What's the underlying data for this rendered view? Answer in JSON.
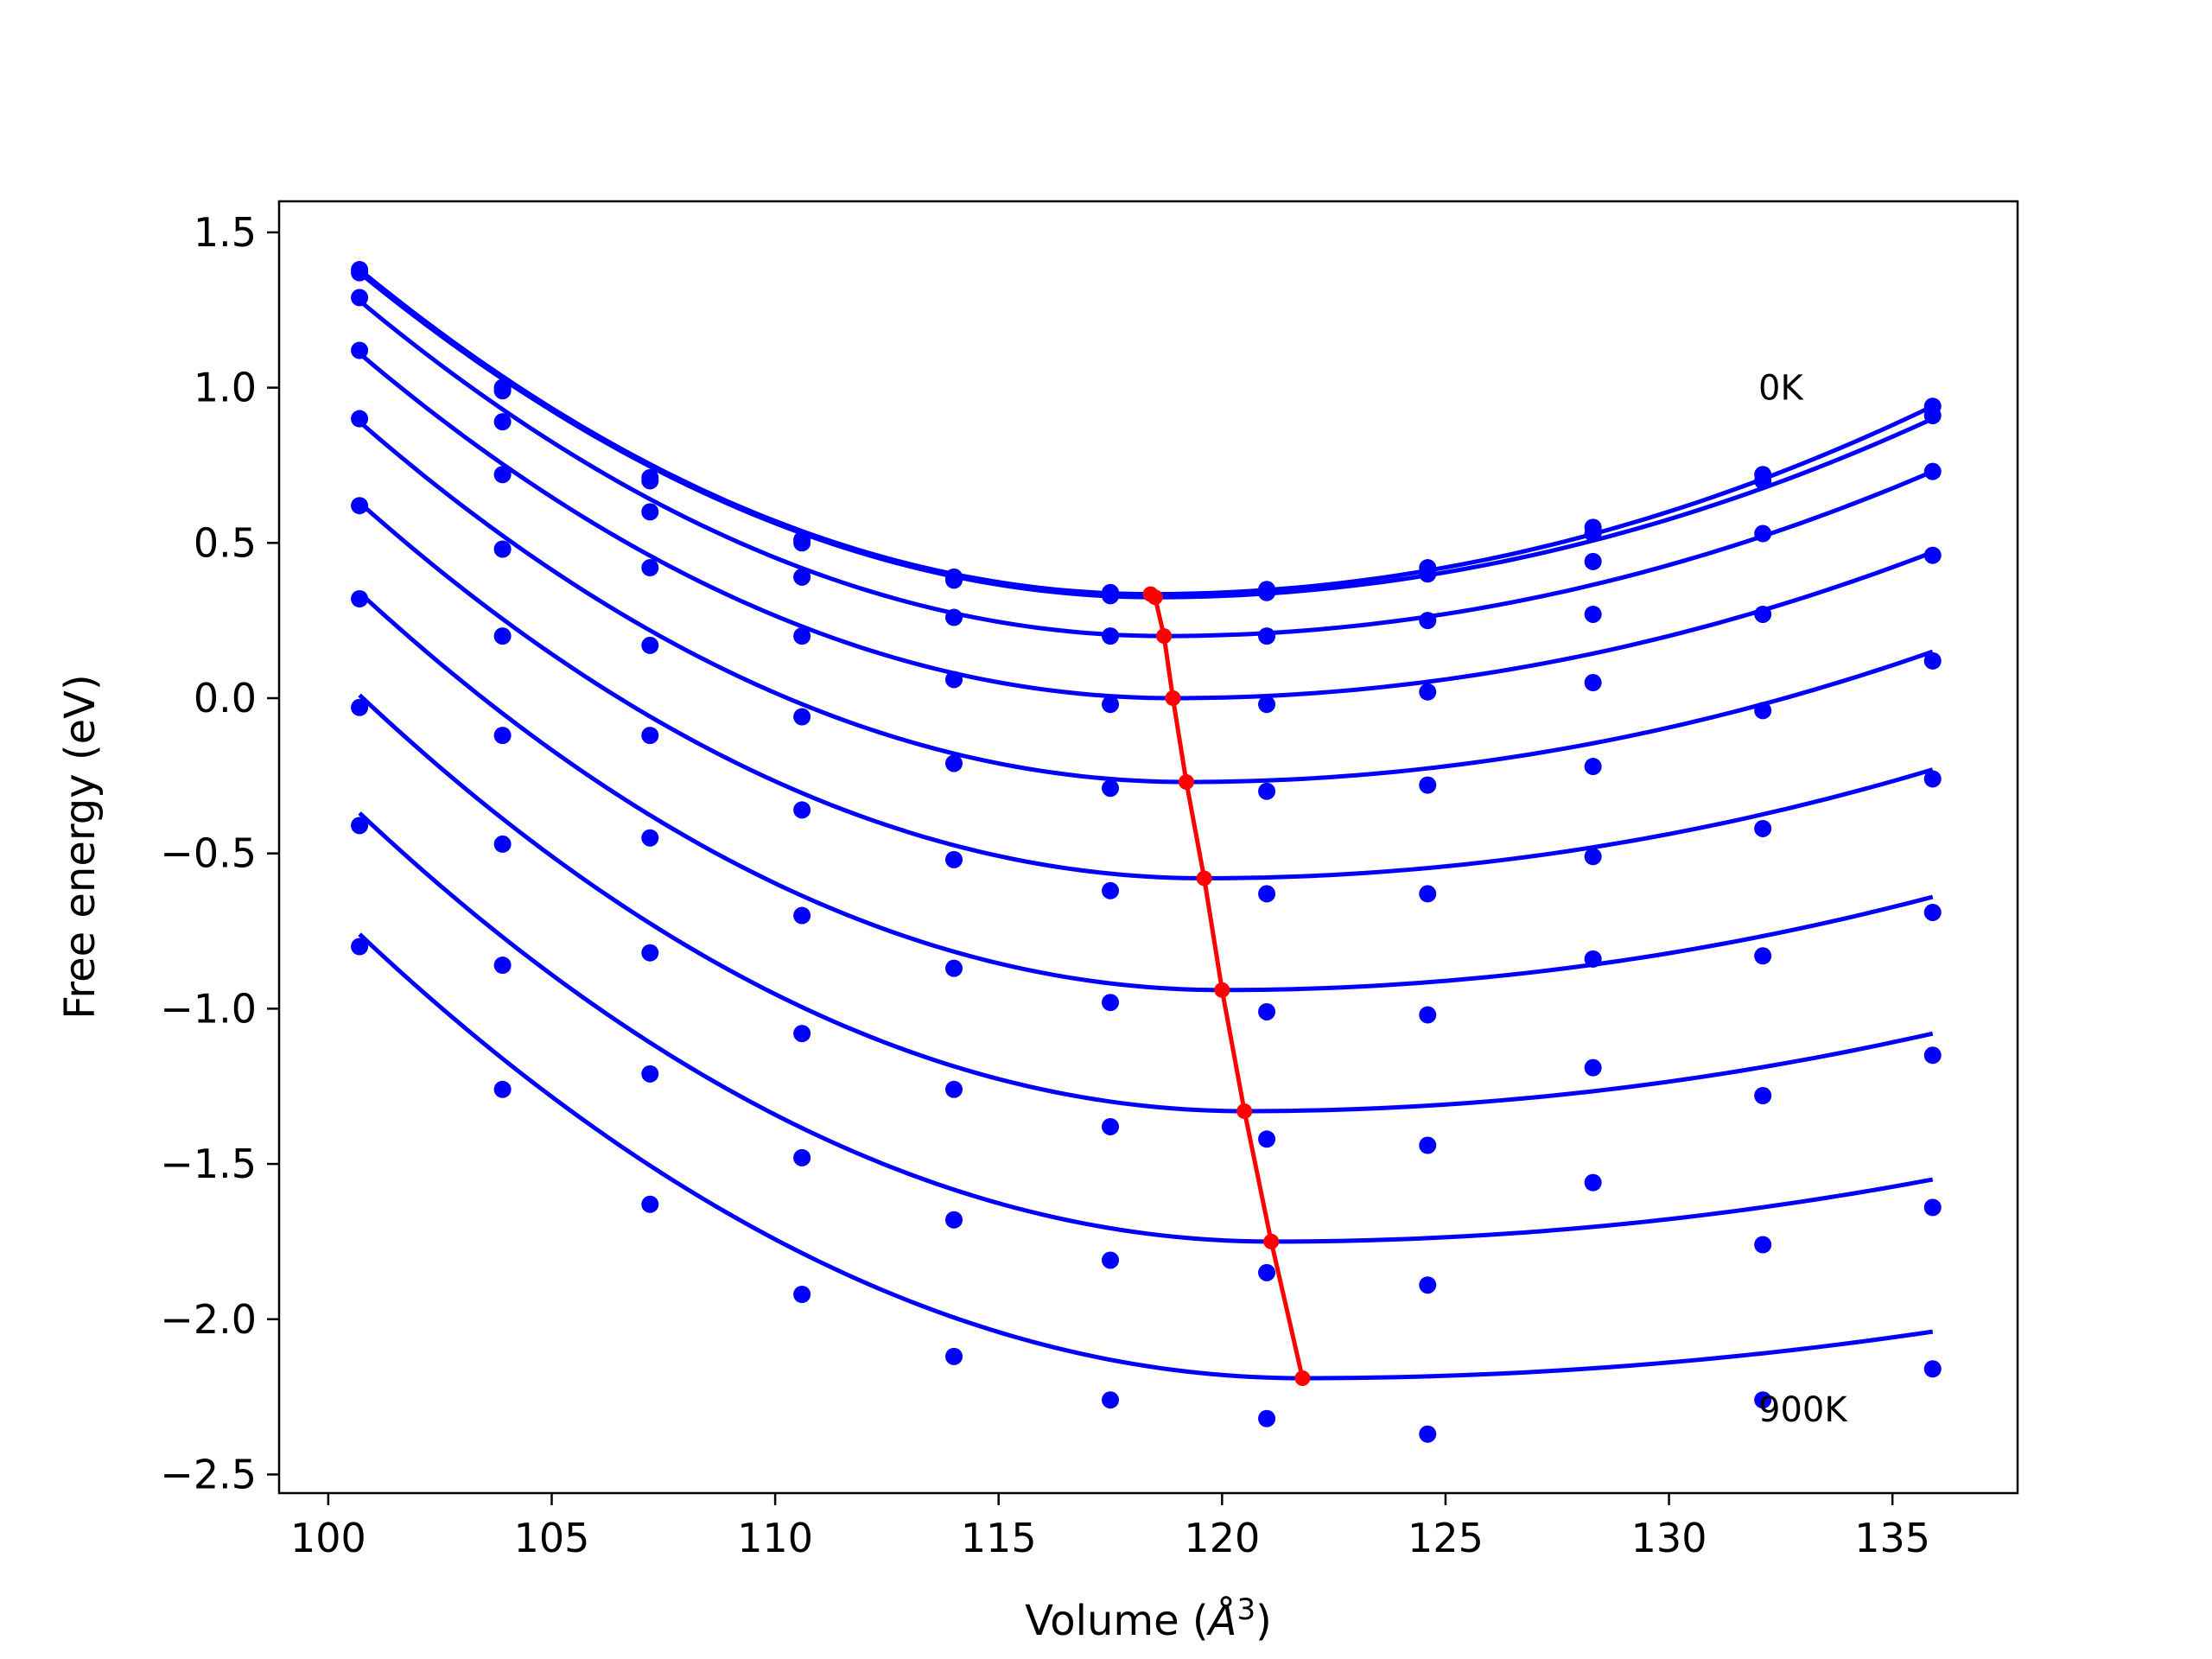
{
  "chart_data": {
    "type": "line",
    "xlabel_prefix": "Volume (",
    "xlabel_unit": "Å",
    "xlabel_exp": "3",
    "xlabel_suffix": ")",
    "ylabel": "Free energy (eV)",
    "xlim": [
      98.9,
      137.8
    ],
    "ylim": [
      -2.56,
      1.6
    ],
    "xticks": [
      100,
      105,
      110,
      115,
      120,
      125,
      130,
      135
    ],
    "yticks": [
      -2.5,
      -2.0,
      -1.5,
      -1.0,
      -0.5,
      0.0,
      0.5,
      1.0,
      1.5
    ],
    "xtick_labels": [
      "100",
      "105",
      "110",
      "115",
      "120",
      "125",
      "130",
      "135"
    ],
    "ytick_labels": [
      "−2.5",
      "−2.0",
      "−1.5",
      "−1.0",
      "−0.5",
      "0.0",
      "0.5",
      "1.0",
      "1.5"
    ],
    "grid": false,
    "annotations": [
      {
        "text": "0K",
        "x": 132.0,
        "y": 1.0
      },
      {
        "text": "900K",
        "x": 132.0,
        "y": -2.29
      }
    ],
    "volumes": [
      100.7,
      103.9,
      107.2,
      110.6,
      114.0,
      117.5,
      121.0,
      124.6,
      128.3,
      132.1,
      135.9
    ],
    "series": [
      {
        "points": [
          1.38,
          1.0,
          0.71,
          0.51,
          0.39,
          0.34,
          0.35,
          0.42,
          0.55,
          0.72,
          0.94
        ],
        "fit_min": [
          118.4,
          0.335
        ],
        "fit_ends": [
          1.38,
          0.94
        ]
      },
      {
        "points": [
          1.37,
          0.99,
          0.7,
          0.5,
          0.38,
          0.33,
          0.34,
          0.4,
          0.53,
          0.7,
          0.91
        ],
        "fit_min": [
          118.5,
          0.325
        ],
        "fit_ends": [
          1.37,
          0.9
        ]
      },
      {
        "points": [
          1.29,
          0.89,
          0.6,
          0.39,
          0.26,
          0.2,
          0.2,
          0.25,
          0.44,
          0.53,
          0.73
        ],
        "fit_min": [
          118.7,
          0.2
        ],
        "fit_ends": [
          1.28,
          0.73
        ]
      },
      {
        "points": [
          1.12,
          0.72,
          0.42,
          0.2,
          0.06,
          -0.02,
          -0.02,
          0.02,
          0.27,
          0.27,
          0.46
        ],
        "fit_min": [
          118.9,
          0.0
        ],
        "fit_ends": [
          1.11,
          0.47
        ]
      },
      {
        "points": [
          0.9,
          0.48,
          0.17,
          -0.06,
          -0.21,
          -0.29,
          -0.3,
          -0.28,
          0.05,
          -0.04,
          0.12
        ],
        "fit_min": [
          119.2,
          -0.27
        ],
        "fit_ends": [
          0.89,
          0.15
        ]
      },
      {
        "points": [
          0.62,
          0.2,
          -0.12,
          -0.36,
          -0.52,
          -0.62,
          -0.63,
          -0.63,
          -0.22,
          -0.42,
          -0.26
        ],
        "fit_min": [
          119.6,
          -0.58
        ],
        "fit_ends": [
          0.63,
          -0.23
        ]
      },
      {
        "points": [
          0.32,
          -0.12,
          -0.45,
          -0.7,
          -0.87,
          -0.98,
          -1.01,
          -1.02,
          -0.51,
          -0.83,
          -0.69
        ],
        "fit_min": [
          120.0,
          -0.94
        ],
        "fit_ends": [
          0.34,
          -0.64
        ]
      },
      {
        "points": [
          -0.03,
          -0.47,
          -0.82,
          -1.08,
          -1.26,
          -1.38,
          -1.42,
          -1.44,
          -0.84,
          -1.28,
          -1.15
        ],
        "fit_min": [
          120.5,
          -1.33
        ],
        "fit_ends": [
          0.01,
          -1.08
        ]
      },
      {
        "points": [
          -0.41,
          -0.86,
          -1.21,
          -1.48,
          -1.68,
          -1.81,
          -1.85,
          -1.89,
          -1.19,
          -1.76,
          -1.64
        ],
        "fit_min": [
          121.1,
          -1.75
        ],
        "fit_ends": [
          -0.37,
          -1.55
        ]
      },
      {
        "points": [
          -0.8,
          -1.26,
          -1.63,
          -1.92,
          -2.12,
          -2.26,
          -2.32,
          -2.37,
          -1.56,
          -2.26,
          -2.16
        ],
        "fit_min": [
          121.8,
          -2.19
        ],
        "fit_ends": [
          -0.76,
          -2.04
        ]
      }
    ],
    "minimum_line": {
      "x": [
        118.4,
        118.5,
        118.7,
        118.9,
        119.2,
        119.6,
        120.0,
        120.5,
        121.1,
        121.8
      ],
      "y": [
        0.335,
        0.325,
        0.2,
        0.0,
        -0.27,
        -0.58,
        -0.94,
        -1.33,
        -1.75,
        -2.19
      ]
    },
    "colors": {
      "series": "#0000ff",
      "minimum_line": "#ff0000",
      "axes": "#000000"
    }
  }
}
